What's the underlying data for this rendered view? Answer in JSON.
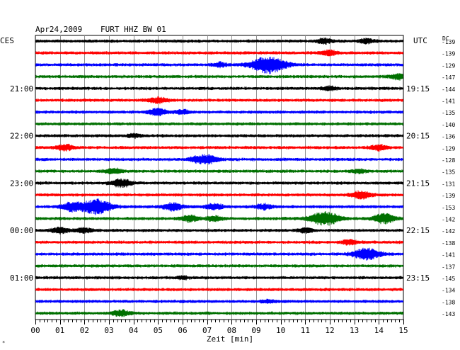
{
  "header": {
    "date": "Apr24,2009",
    "station": "FURT HHZ BW 01",
    "left_zone": "CES",
    "right_zone": "UTC",
    "dc_label": "DC"
  },
  "chart_data": {
    "type": "line",
    "title": "Apr24,2009   FURT HHZ BW 01",
    "xlabel": "Zeit [min]",
    "ylabel": "",
    "xlim": [
      0,
      15
    ],
    "x_ticks": [
      "00",
      "01",
      "02",
      "03",
      "04",
      "05",
      "06",
      "07",
      "08",
      "09",
      "10",
      "11",
      "12",
      "13",
      "14",
      "15"
    ],
    "grid": true,
    "trace_colors": [
      "#000000",
      "#ff0000",
      "#0000ff",
      "#007000"
    ],
    "left_time_labels": [
      {
        "trace": 4,
        "label": "21:00"
      },
      {
        "trace": 8,
        "label": "22:00"
      },
      {
        "trace": 12,
        "label": "23:00"
      },
      {
        "trace": 16,
        "label": "00:00"
      },
      {
        "trace": 20,
        "label": "01:00"
      }
    ],
    "right_time_labels": [
      {
        "trace": 4,
        "label": "19:15"
      },
      {
        "trace": 8,
        "label": "20:15"
      },
      {
        "trace": 12,
        "label": "21:15"
      },
      {
        "trace": 16,
        "label": "22:15"
      },
      {
        "trace": 20,
        "label": "23:15"
      }
    ],
    "dc_offsets": [
      "-139",
      "-139",
      "-129",
      "-147",
      "-144",
      "-141",
      "-135",
      "-140",
      "-136",
      "-129",
      "-128",
      "-135",
      "-131",
      "-139",
      "-153",
      "-142",
      "-142",
      "-138",
      "-141",
      "-137",
      "-145",
      "-134",
      "-138",
      "-143"
    ],
    "events": [
      {
        "trace": 0,
        "minute": 11.8,
        "amp": 0.3
      },
      {
        "trace": 0,
        "minute": 13.5,
        "amp": 0.25
      },
      {
        "trace": 1,
        "minute": 12.0,
        "amp": 0.3
      },
      {
        "trace": 2,
        "minute": 9.5,
        "amp": 1.0
      },
      {
        "trace": 2,
        "minute": 7.5,
        "amp": 0.25
      },
      {
        "trace": 3,
        "minute": 14.8,
        "amp": 0.3
      },
      {
        "trace": 4,
        "minute": 12.0,
        "amp": 0.2
      },
      {
        "trace": 5,
        "minute": 5.0,
        "amp": 0.35
      },
      {
        "trace": 6,
        "minute": 5.0,
        "amp": 0.4
      },
      {
        "trace": 6,
        "minute": 6.0,
        "amp": 0.25
      },
      {
        "trace": 8,
        "minute": 4.0,
        "amp": 0.2
      },
      {
        "trace": 9,
        "minute": 1.2,
        "amp": 0.35
      },
      {
        "trace": 9,
        "minute": 14.0,
        "amp": 0.3
      },
      {
        "trace": 10,
        "minute": 7.0,
        "amp": 0.5
      },
      {
        "trace": 10,
        "minute": 6.5,
        "amp": 0.2
      },
      {
        "trace": 11,
        "minute": 3.2,
        "amp": 0.3
      },
      {
        "trace": 11,
        "minute": 13.2,
        "amp": 0.2
      },
      {
        "trace": 12,
        "minute": 3.5,
        "amp": 0.45
      },
      {
        "trace": 13,
        "minute": 13.3,
        "amp": 0.45
      },
      {
        "trace": 14,
        "minute": 2.5,
        "amp": 0.85
      },
      {
        "trace": 14,
        "minute": 1.5,
        "amp": 0.5
      },
      {
        "trace": 14,
        "minute": 5.6,
        "amp": 0.45
      },
      {
        "trace": 14,
        "minute": 7.3,
        "amp": 0.35
      },
      {
        "trace": 14,
        "minute": 9.3,
        "amp": 0.3
      },
      {
        "trace": 15,
        "minute": 11.8,
        "amp": 0.8
      },
      {
        "trace": 15,
        "minute": 14.2,
        "amp": 0.55
      },
      {
        "trace": 15,
        "minute": 6.3,
        "amp": 0.35
      },
      {
        "trace": 15,
        "minute": 7.3,
        "amp": 0.3
      },
      {
        "trace": 16,
        "minute": 1.0,
        "amp": 0.35
      },
      {
        "trace": 16,
        "minute": 2.0,
        "amp": 0.3
      },
      {
        "trace": 16,
        "minute": 11.0,
        "amp": 0.25
      },
      {
        "trace": 17,
        "minute": 12.8,
        "amp": 0.3
      },
      {
        "trace": 18,
        "minute": 13.5,
        "amp": 0.7
      },
      {
        "trace": 20,
        "minute": 6.0,
        "amp": 0.15
      },
      {
        "trace": 22,
        "minute": 9.5,
        "amp": 0.2
      },
      {
        "trace": 23,
        "minute": 3.5,
        "amp": 0.35
      }
    ]
  }
}
